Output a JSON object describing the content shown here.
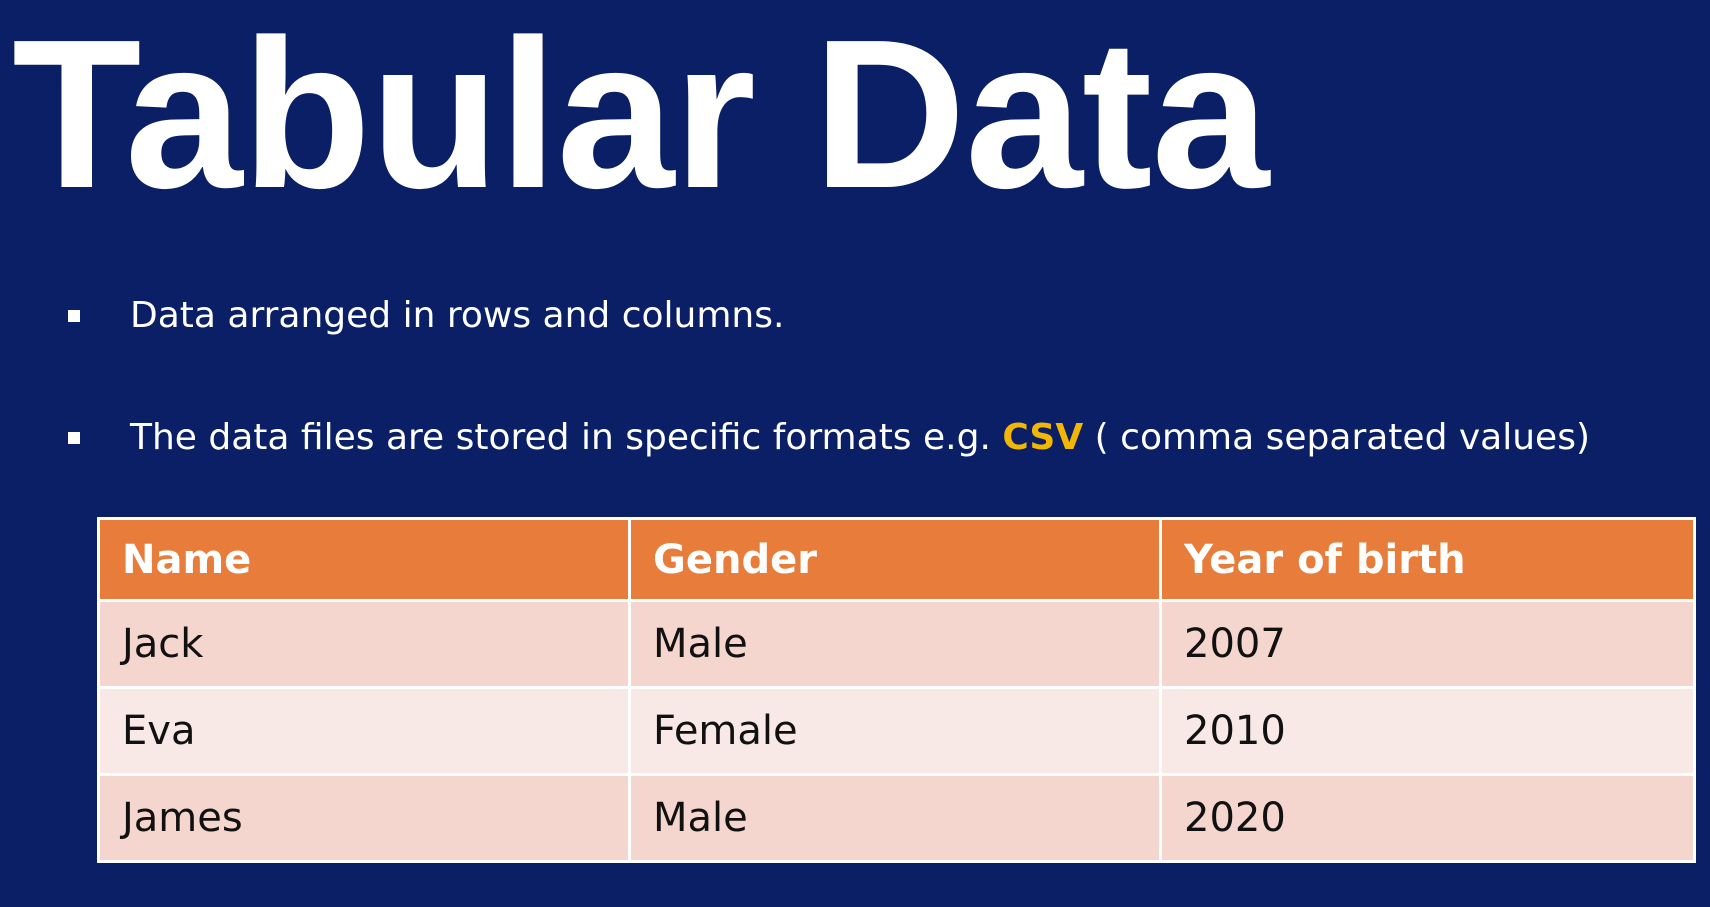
{
  "slide": {
    "title": "Tabular Data",
    "bullets": [
      {
        "text": "Data arranged in rows and columns."
      },
      {
        "text_before": "The data files are stored in specific formats e.g. ",
        "highlight": "CSV",
        "text_after": " ( comma separated values)"
      }
    ],
    "colors": {
      "background": "#0a1f66",
      "highlight": "#f2b705",
      "table_header": "#e87c3a",
      "table_row_odd": "#f4d6ce",
      "table_row_even": "#f9e9e6"
    }
  },
  "table": {
    "headers": [
      "Name",
      "Gender",
      "Year of  birth"
    ],
    "rows": [
      [
        "Jack",
        "Male",
        "2007"
      ],
      [
        "Eva",
        "Female",
        "2010"
      ],
      [
        "James",
        "Male",
        "2020"
      ]
    ]
  }
}
